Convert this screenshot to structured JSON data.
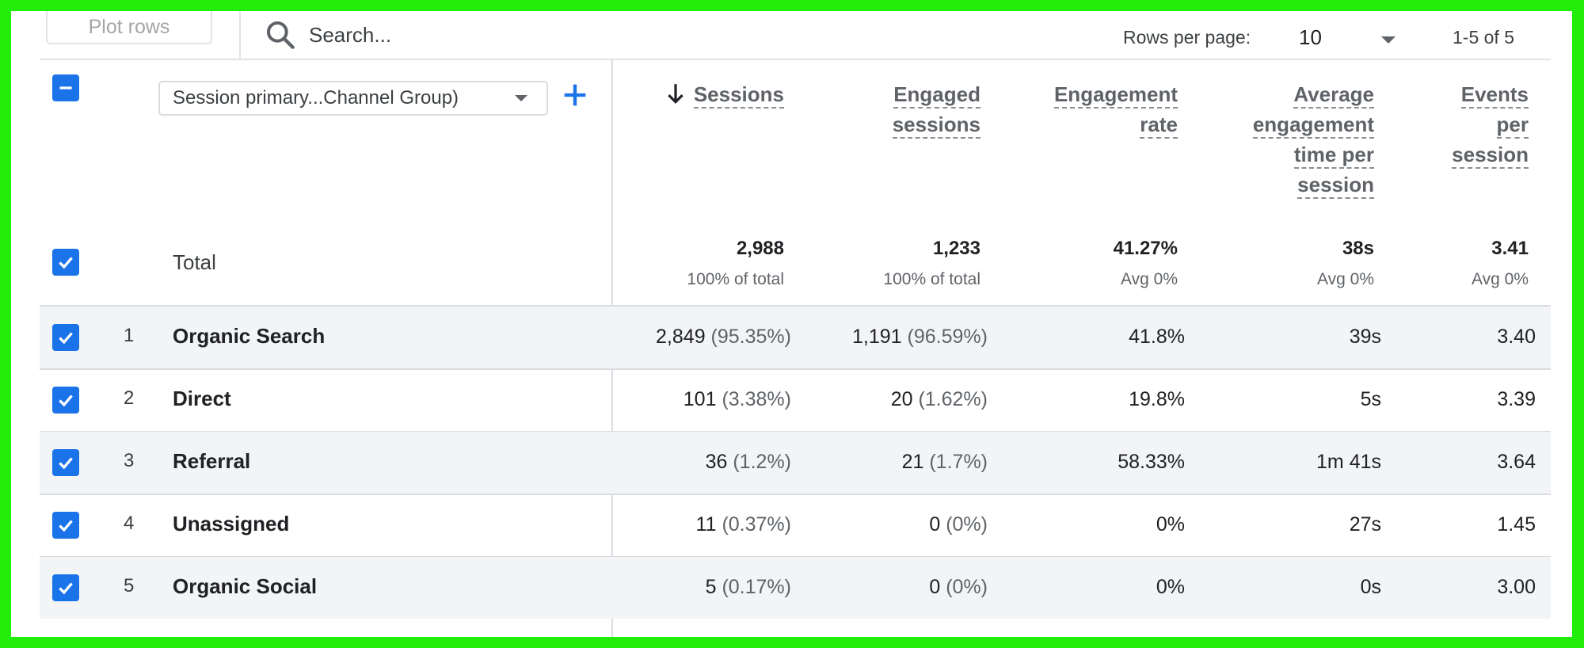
{
  "toolbar": {
    "plot_rows_label": "Plot rows",
    "search_placeholder": "Search...",
    "rows_per_page_label": "Rows per page:",
    "rows_per_page_value": "10",
    "pagination": "1-5 of 5"
  },
  "table": {
    "dimension_select": "Session primary...Channel Group)",
    "headers": {
      "sessions": [
        "Sessions"
      ],
      "engaged_sessions": [
        "Engaged",
        "sessions"
      ],
      "engagement_rate": [
        "Engagement",
        "rate"
      ],
      "avg_engagement_time": [
        "Average",
        "engagement",
        "time per",
        "session"
      ],
      "events_per_session": [
        "Events",
        "per",
        "session"
      ]
    },
    "total": {
      "label": "Total",
      "sessions": "2,988",
      "sessions_sub": "100% of total",
      "engaged_sessions": "1,233",
      "engaged_sessions_sub": "100% of total",
      "engagement_rate": "41.27%",
      "engagement_rate_sub": "Avg 0%",
      "avg_engagement_time": "38s",
      "avg_engagement_time_sub": "Avg 0%",
      "events_per_session": "3.41",
      "events_per_session_sub": "Avg 0%"
    },
    "rows": [
      {
        "index": "1",
        "name": "Organic Search",
        "sessions": "2,849",
        "sessions_pct": "(95.35%)",
        "engaged": "1,191",
        "engaged_pct": "(96.59%)",
        "rate": "41.8%",
        "time": "39s",
        "events": "3.40"
      },
      {
        "index": "2",
        "name": "Direct",
        "sessions": "101",
        "sessions_pct": "(3.38%)",
        "engaged": "20",
        "engaged_pct": "(1.62%)",
        "rate": "19.8%",
        "time": "5s",
        "events": "3.39"
      },
      {
        "index": "3",
        "name": "Referral",
        "sessions": "36",
        "sessions_pct": "(1.2%)",
        "engaged": "21",
        "engaged_pct": "(1.7%)",
        "rate": "58.33%",
        "time": "1m 41s",
        "events": "3.64"
      },
      {
        "index": "4",
        "name": "Unassigned",
        "sessions": "11",
        "sessions_pct": "(0.37%)",
        "engaged": "0",
        "engaged_pct": "(0%)",
        "rate": "0%",
        "time": "27s",
        "events": "1.45"
      },
      {
        "index": "5",
        "name": "Organic Social",
        "sessions": "5",
        "sessions_pct": "(0.17%)",
        "engaged": "0",
        "engaged_pct": "(0%)",
        "rate": "0%",
        "time": "0s",
        "events": "3.00"
      }
    ]
  },
  "colors": {
    "frame_border": "#22ee0a",
    "checkbox": "#1a73e8",
    "alt_row": "#f3f4f6"
  },
  "icons": {
    "search": "search-icon",
    "dropdown": "chevron-down-icon",
    "add": "plus-icon",
    "sort": "arrow-down-icon",
    "checkbox_checked": "checkmark-icon",
    "checkbox_indeterminate": "minus-icon"
  }
}
